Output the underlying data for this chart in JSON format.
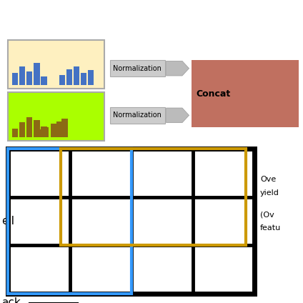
{
  "fig_bg": "#ffffff",
  "histogram_top_bg": "#fef0c0",
  "histogram_bot_bg": "#aaff00",
  "bar_color_blue": "#4472c4",
  "bar_color_gold": "#8b6914",
  "concat_color": "#c07060",
  "grid_color": "#000000",
  "blue_rect_color": "#3399ff",
  "gold_rect_color": "#cc9900",
  "norm_box_color": "#cccccc",
  "arrow_color": "#bbbbbb",
  "text_norm": "Normalization",
  "text_concat": "Concat",
  "cell_label": "ell",
  "block_label": "ack",
  "right_text_line1": "Ove",
  "right_text_line2": "yield",
  "right_text_line3": "(Ov",
  "right_text_line4": "featu"
}
